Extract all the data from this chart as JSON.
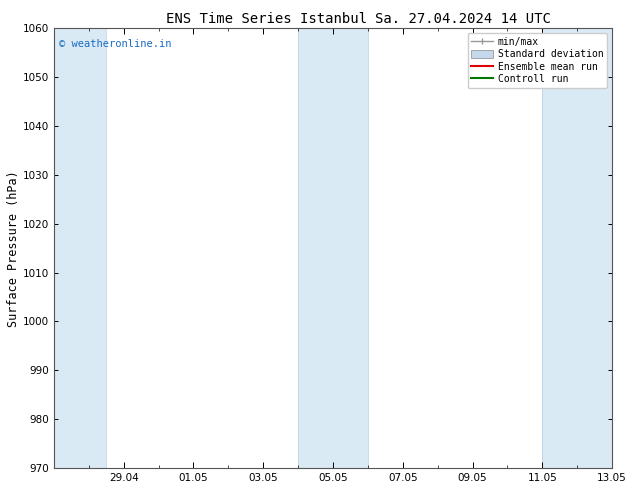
{
  "title": "ENS Time Series Istanbul",
  "title2": "Sa. 27.04.2024 14 UTC",
  "ylabel": "Surface Pressure (hPa)",
  "watermark": "© weatheronline.in",
  "watermark_color": "#1a6bc4",
  "ylim": [
    970,
    1060
  ],
  "yticks": [
    970,
    980,
    990,
    1000,
    1010,
    1020,
    1030,
    1040,
    1050,
    1060
  ],
  "background_color": "#ffffff",
  "plot_bg_color": "#ffffff",
  "band_color": "#daeaf5",
  "start_date": "2024-04-27",
  "end_date": "2024-05-13",
  "xtick_labels": [
    "29.04",
    "01.05",
    "03.05",
    "05.05",
    "07.05",
    "09.05",
    "11.05",
    "13.05"
  ],
  "xtick_positions_days_from_start": [
    2,
    4,
    6,
    8,
    10,
    12,
    14,
    16
  ],
  "band_ranges_days": [
    [
      0.0,
      1.5
    ],
    [
      7.0,
      9.0
    ],
    [
      14.0,
      16.5
    ]
  ],
  "legend_labels": [
    "min/max",
    "Standard deviation",
    "Ensemble mean run",
    "Controll run"
  ],
  "legend_colors": [
    "#999999",
    "#c5d8ec",
    "#dd0000",
    "#007700"
  ],
  "title_fontsize": 10,
  "tick_fontsize": 7.5,
  "ylabel_fontsize": 8.5,
  "watermark_fontsize": 7.5,
  "legend_fontsize": 7
}
